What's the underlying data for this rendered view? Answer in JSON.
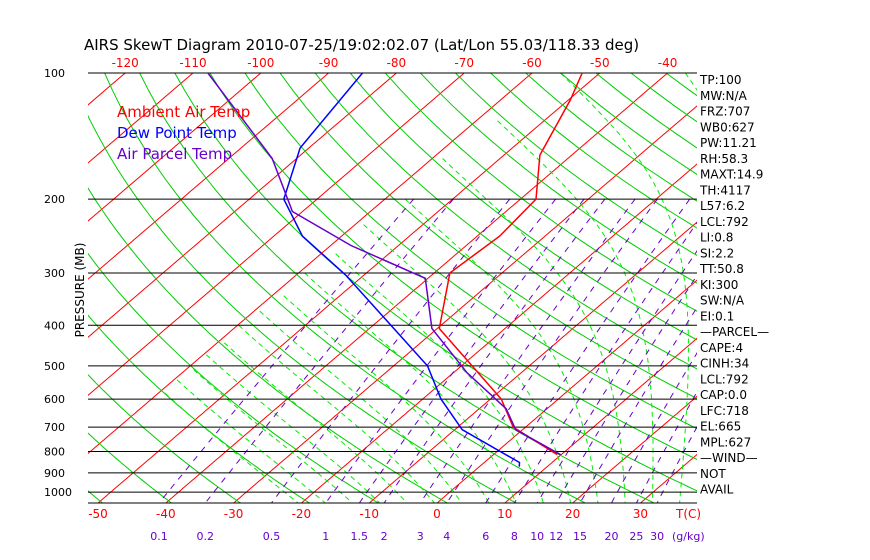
{
  "chart_data": {
    "type": "line",
    "title": "AIRS SkewT Diagram 2010-07-25/19:02:02.07 (Lat/Lon 55.03/118.33 deg)",
    "ylabel": "PRESSURE (MB)",
    "xlabel": "T(C)",
    "mixing_ratio_unit": "(g/kg)",
    "ylim": [
      1062,
      100
    ],
    "pressure_ticks": [
      100,
      200,
      300,
      400,
      500,
      600,
      700,
      800,
      900,
      1000
    ],
    "top_temp_ticks": [
      -120,
      -110,
      -100,
      -90,
      -80,
      -70,
      -60,
      -50,
      -40
    ],
    "bottom_temp_ticks": [
      -50,
      -40,
      -30,
      -20,
      -10,
      0,
      10,
      20,
      30
    ],
    "mixing_ratio_ticks": [
      "0.1",
      "0.2",
      "0.5",
      "1",
      "1.5",
      "2",
      "3",
      "4",
      "6",
      "8",
      "10",
      "12",
      "15",
      "20",
      "25",
      "30"
    ],
    "legend": [
      {
        "label": "Ambient Air Temp",
        "color": "#ff0000"
      },
      {
        "label": "Dew Point Temp",
        "color": "#0000ff"
      },
      {
        "label": "Air Parcel Temp",
        "color": "#6600cc"
      }
    ],
    "series": [
      {
        "name": "Ambient Air Temp",
        "color": "#ff0000",
        "p": [
          100,
          116,
          157,
          200,
          245,
          300,
          407,
          600,
          700,
          814
        ],
        "t": [
          -52.6,
          -49.7,
          -44.7,
          -37.7,
          -36.7,
          -37.7,
          -29.7,
          -8.4,
          -1.8,
          9.4
        ]
      },
      {
        "name": "Dew Point Temp",
        "color": "#0000ff",
        "p": [
          100,
          151,
          200,
          245,
          303,
          500,
          600,
          710,
          850,
          870
        ],
        "t": [
          -85,
          -81.3,
          -74.9,
          -65.8,
          -52.8,
          -25,
          -17.3,
          -8.9,
          5.2,
          5.9
        ]
      },
      {
        "name": "Air Parcel Temp",
        "color": "#6600cc",
        "p": [
          100,
          160,
          214,
          258,
          309,
          407,
          519,
          633,
          710,
          814
        ],
        "t": [
          -107.8,
          -83.6,
          -71.5,
          -57,
          -40.4,
          -30.8,
          -18,
          -6,
          -1,
          9.9
        ]
      }
    ]
  },
  "indices": [
    "TP:100",
    "MW:N/A",
    "FRZ:707",
    "WB0:627",
    "PW:11.21",
    "RH:58.3",
    "MAXT:14.9",
    "TH:4117",
    "L57:6.2",
    "LCL:792",
    "LI:0.8",
    "SI:2.2",
    "TT:50.8",
    "KI:300",
    "SW:N/A",
    "EI:0.1",
    "—PARCEL—",
    "CAPE:4",
    "CINH:34",
    "LCL:792",
    "CAP:0.0",
    "LFC:718",
    "EL:665",
    "MPL:627",
    "—WIND—",
    "NOT",
    "AVAIL"
  ]
}
